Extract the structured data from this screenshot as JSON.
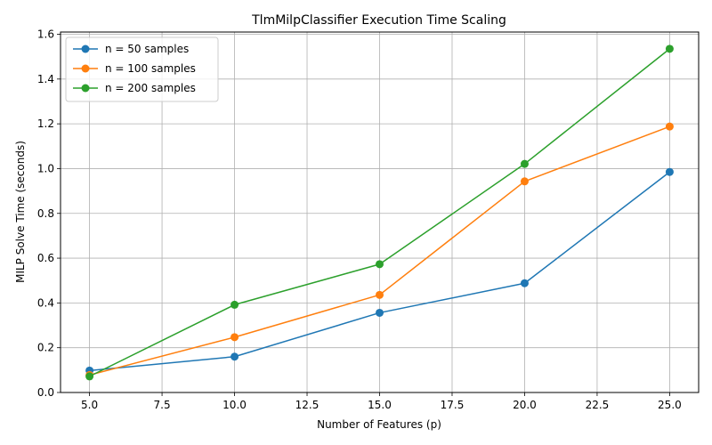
{
  "chart_data": {
    "type": "line",
    "title": "TlmMilpClassifier Execution Time Scaling",
    "xlabel": "Number of Features (p)",
    "ylabel": "MILP Solve Time (seconds)",
    "x": [
      5,
      10,
      15,
      20,
      25
    ],
    "xlim": [
      4,
      26
    ],
    "ylim": [
      0,
      1.61
    ],
    "xticks": [
      5.0,
      7.5,
      10.0,
      12.5,
      15.0,
      17.5,
      20.0,
      22.5,
      25.0
    ],
    "xtick_labels": [
      "5.0",
      "7.5",
      "10.0",
      "12.5",
      "15.0",
      "17.5",
      "20.0",
      "22.5",
      "25.0"
    ],
    "yticks": [
      0.0,
      0.2,
      0.4,
      0.6,
      0.8,
      1.0,
      1.2,
      1.4,
      1.6
    ],
    "ytick_labels": [
      "0.0",
      "0.2",
      "0.4",
      "0.6",
      "0.8",
      "1.0",
      "1.2",
      "1.4",
      "1.6"
    ],
    "grid": true,
    "legend_position": "top-left",
    "series": [
      {
        "name": "n = 50 samples",
        "color": "#1f77b4",
        "values": [
          0.098,
          0.16,
          0.356,
          0.488,
          0.985
        ]
      },
      {
        "name": "n = 100 samples",
        "color": "#ff7f0e",
        "values": [
          0.078,
          0.247,
          0.436,
          0.943,
          1.188
        ]
      },
      {
        "name": "n = 200 samples",
        "color": "#2ca02c",
        "values": [
          0.072,
          0.392,
          0.573,
          1.021,
          1.535
        ]
      }
    ]
  }
}
